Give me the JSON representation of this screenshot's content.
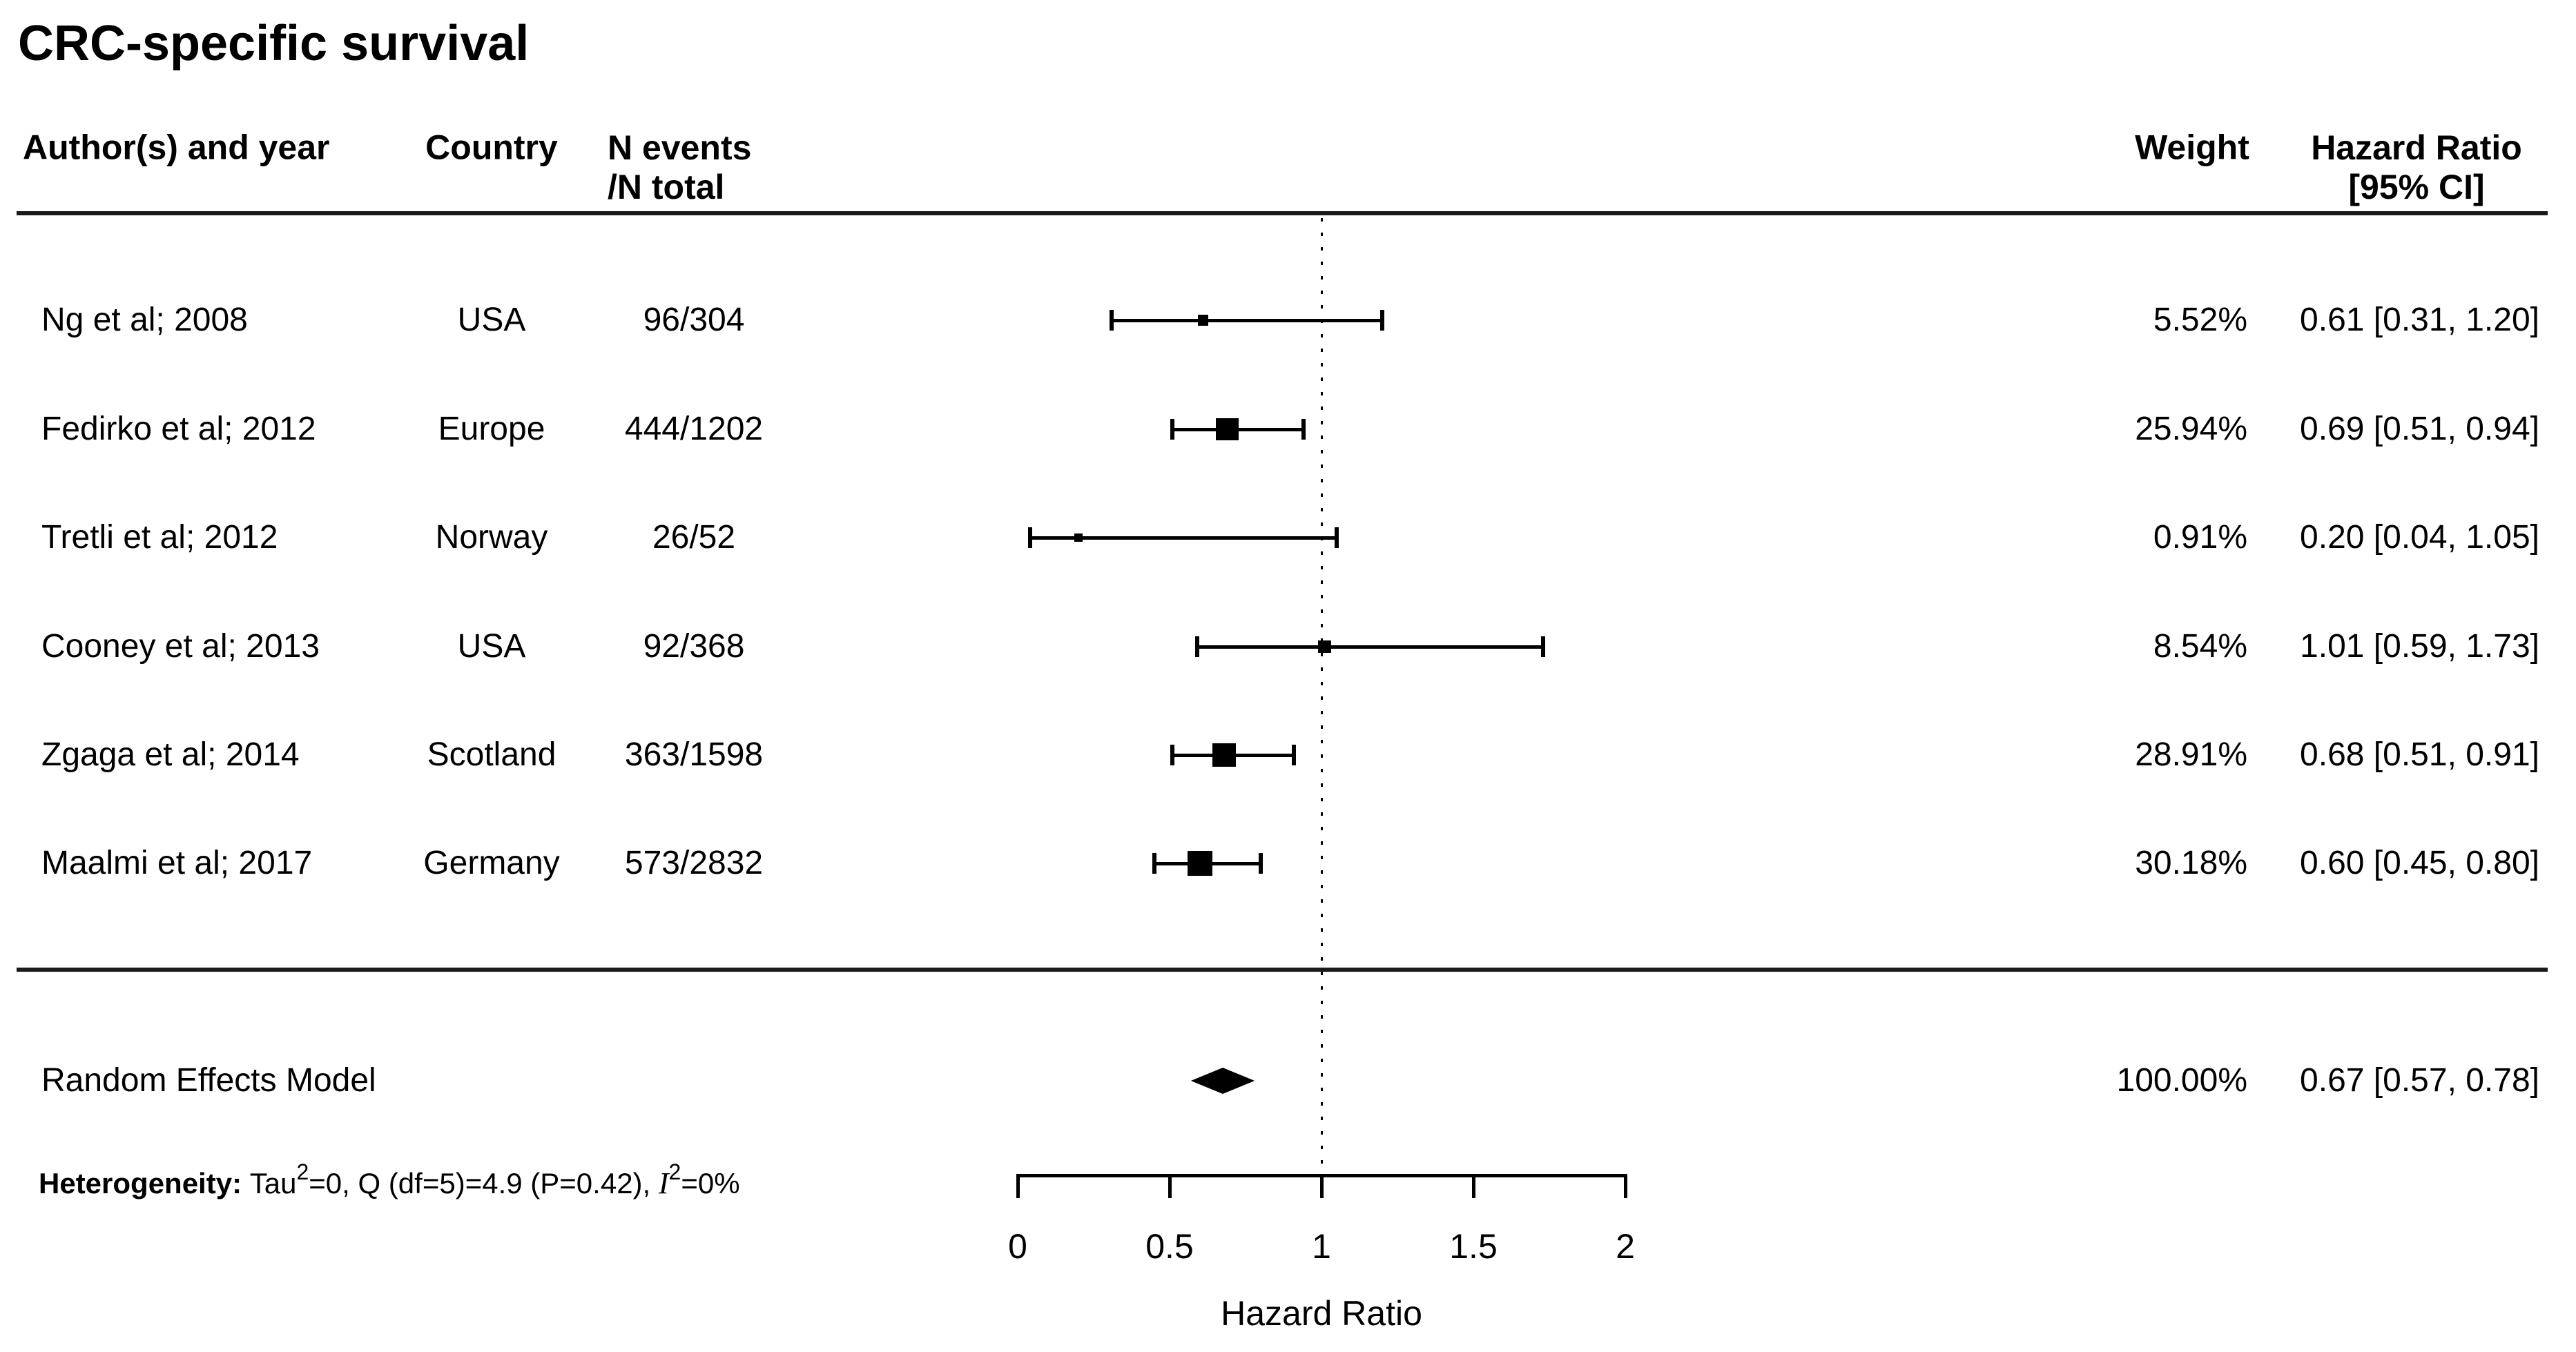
{
  "title": "CRC-specific survival",
  "header": {
    "author": "Author(s) and year",
    "country": "Country",
    "n_events": [
      "N events",
      "/N total"
    ],
    "weight": "Weight",
    "hazard_ratio": [
      "Hazard Ratio",
      "[95% CI]"
    ]
  },
  "axis": {
    "label": "Hazard Ratio",
    "min": 0,
    "max": 2,
    "reference_value": 1,
    "ticks": [
      {
        "value": 0,
        "label": "0"
      },
      {
        "value": 0.5,
        "label": "0.5"
      },
      {
        "value": 1,
        "label": "1"
      },
      {
        "value": 1.5,
        "label": "1.5"
      },
      {
        "value": 2,
        "label": "2"
      }
    ]
  },
  "heterogeneity": {
    "parts": [
      {
        "text": "Heterogeneity: ",
        "bold": true,
        "sup": false,
        "serif": false
      },
      {
        "text": "Tau",
        "bold": false,
        "sup": false,
        "serif": false
      },
      {
        "text": "2",
        "bold": false,
        "sup": true,
        "serif": false
      },
      {
        "text": "=0, Q (df=5)=4.9 (P=0.42), ",
        "bold": false,
        "sup": false,
        "serif": false
      },
      {
        "text": "I",
        "bold": false,
        "sup": false,
        "serif": true
      },
      {
        "text": "2",
        "bold": false,
        "sup": true,
        "serif": false
      },
      {
        "text": "=0%",
        "bold": false,
        "sup": false,
        "serif": false
      }
    ]
  },
  "colors": {
    "foreground": "#000000",
    "background": "#ffffff"
  },
  "chart_data": {
    "type": "scatter",
    "subtype": "forest-plot",
    "title": "CRC-specific survival",
    "xlabel": "Hazard Ratio",
    "xlim": [
      0,
      2
    ],
    "x_ticks": [
      0,
      0.5,
      1,
      1.5,
      2
    ],
    "reference_line_x": 1,
    "grid": false,
    "studies": [
      {
        "author": "Ng et al; 2008",
        "country": "USA",
        "n_events": "96/304",
        "weight_pct": 5.52,
        "weight_label": "5.52%",
        "hr": 0.61,
        "ci_low": 0.31,
        "ci_high": 1.2,
        "hr_label": "0.61 [0.31, 1.20]"
      },
      {
        "author": "Fedirko et al; 2012",
        "country": "Europe",
        "n_events": "444/1202",
        "weight_pct": 25.94,
        "weight_label": "25.94%",
        "hr": 0.69,
        "ci_low": 0.51,
        "ci_high": 0.94,
        "hr_label": "0.69 [0.51, 0.94]"
      },
      {
        "author": "Tretli et al; 2012",
        "country": "Norway",
        "n_events": "26/52",
        "weight_pct": 0.91,
        "weight_label": "0.91%",
        "hr": 0.2,
        "ci_low": 0.04,
        "ci_high": 1.05,
        "hr_label": "0.20 [0.04, 1.05]"
      },
      {
        "author": "Cooney et al; 2013",
        "country": "USA",
        "n_events": "92/368",
        "weight_pct": 8.54,
        "weight_label": "8.54%",
        "hr": 1.01,
        "ci_low": 0.59,
        "ci_high": 1.73,
        "hr_label": "1.01 [0.59, 1.73]"
      },
      {
        "author": "Zgaga et al; 2014",
        "country": "Scotland",
        "n_events": "363/1598",
        "weight_pct": 28.91,
        "weight_label": "28.91%",
        "hr": 0.68,
        "ci_low": 0.51,
        "ci_high": 0.91,
        "hr_label": "0.68 [0.51, 0.91]"
      },
      {
        "author": "Maalmi et al; 2017",
        "country": "Germany",
        "n_events": "573/2832",
        "weight_pct": 30.18,
        "weight_label": "30.18%",
        "hr": 0.6,
        "ci_low": 0.45,
        "ci_high": 0.8,
        "hr_label": "0.60 [0.45, 0.80]"
      }
    ],
    "summary": {
      "label": "Random Effects Model",
      "weight_pct": 100.0,
      "weight_label": "100.00%",
      "hr": 0.67,
      "ci_low": 0.57,
      "ci_high": 0.78,
      "hr_label": "0.67 [0.57, 0.78]",
      "marker": "diamond"
    },
    "heterogeneity_text": "Heterogeneity: Tau2=0, Q (df=5)=4.9 (P=0.42), I2=0%"
  }
}
